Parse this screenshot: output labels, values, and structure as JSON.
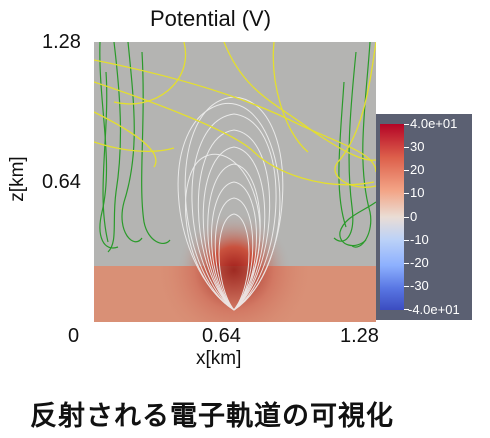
{
  "title": "Potential (V)",
  "yaxis": {
    "label": "z[km]",
    "ticks": [
      "1.28",
      "0.64",
      "0"
    ]
  },
  "xaxis": {
    "label": "x[km]",
    "ticks": [
      "0.64",
      "1.28"
    ]
  },
  "colorbar": {
    "labels": [
      "4.0e+01",
      "30",
      "20",
      "10",
      "0",
      "-10",
      "-20",
      "-30",
      "-4.0e+01"
    ],
    "colormap": "cool-to-warm",
    "range": [
      -40,
      40
    ],
    "panel_color": "#5b6072"
  },
  "caption": "反射される電子軌道の可視化",
  "colors": {
    "background": "#b4b4b2",
    "ground": "#d99076",
    "field_line_green": "#2a9a2a",
    "field_line_yellow": "#e4df2e",
    "electron_orbit": "#f0f0f0"
  }
}
